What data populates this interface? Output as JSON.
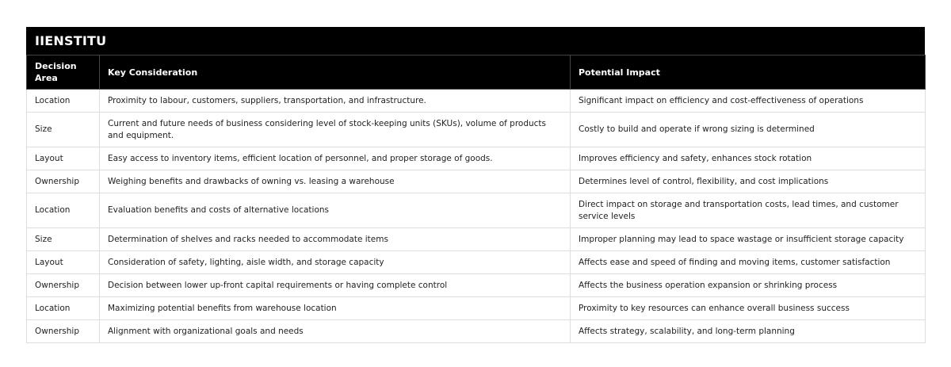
{
  "brand": "IIENSTITU",
  "headers": {
    "area": "Decision Area",
    "consideration": "Key Consideration",
    "impact": "Potential Impact"
  },
  "rows": [
    {
      "area": "Location",
      "consideration": "Proximity to labour, customers, suppliers, transportation, and infrastructure.",
      "impact": "Significant impact on efficiency and cost-effectiveness of operations"
    },
    {
      "area": "Size",
      "consideration": "Current and future needs of business considering level of stock-keeping units (SKUs), volume of products and equipment.",
      "impact": "Costly to build and operate if wrong sizing is determined"
    },
    {
      "area": "Layout",
      "consideration": "Easy access to inventory items, efficient location of personnel, and proper storage of goods.",
      "impact": "Improves efficiency and safety, enhances stock rotation"
    },
    {
      "area": "Ownership",
      "consideration": "Weighing benefits and drawbacks of owning vs. leasing a warehouse",
      "impact": "Determines level of control, flexibility, and cost implications"
    },
    {
      "area": "Location",
      "consideration": "Evaluation benefits and costs of alternative locations",
      "impact": "Direct impact on storage and transportation costs, lead times, and customer service levels"
    },
    {
      "area": "Size",
      "consideration": "Determination of shelves and racks needed to accommodate items",
      "impact": "Improper planning may lead to space wastage or insufficient storage capacity"
    },
    {
      "area": "Layout",
      "consideration": "Consideration of safety, lighting, aisle width, and storage capacity",
      "impact": "Affects ease and speed of finding and moving items, customer satisfaction"
    },
    {
      "area": "Ownership",
      "consideration": "Decision between lower up-front capital requirements or having complete control",
      "impact": "Affects the business operation expansion or shrinking process"
    },
    {
      "area": "Location",
      "consideration": "Maximizing potential benefits from warehouse location",
      "impact": "Proximity to key resources can enhance overall business success"
    },
    {
      "area": "Ownership",
      "consideration": "Alignment with organizational goals and needs",
      "impact": "Affects strategy, scalability, and long-term planning"
    }
  ]
}
